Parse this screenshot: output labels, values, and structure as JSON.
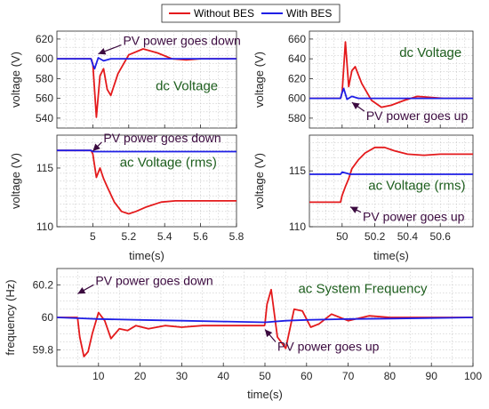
{
  "legend": {
    "location": "top-center",
    "entries": [
      {
        "name": "Without BES",
        "color": "#e41a1c"
      },
      {
        "name": "With BES",
        "color": "#1f1fe6"
      }
    ]
  },
  "colors": {
    "without": "#e41a1c",
    "with": "#1f1fe6",
    "annotation": "#3b0a3f",
    "panel_title": "#1d5e1d"
  },
  "chart_data": [
    {
      "id": "p1",
      "type": "line",
      "title": "",
      "xlabel": "",
      "ylabel": "voltage (V)",
      "xlim": [
        4.8,
        5.8
      ],
      "ylim": [
        530,
        628
      ],
      "xticks": [
        5,
        5.2,
        5.4,
        5.6,
        5.8
      ],
      "xticklabels": [],
      "yticks": [
        540,
        560,
        580,
        600,
        620
      ],
      "yticklabels": [
        "540",
        "560",
        "580",
        "600",
        "620"
      ],
      "grid": true,
      "series": [
        {
          "name": "Without BES",
          "x": [
            4.8,
            4.99,
            5.0,
            5.02,
            5.04,
            5.06,
            5.08,
            5.1,
            5.14,
            5.2,
            5.28,
            5.36,
            5.44,
            5.52,
            5.6,
            5.7,
            5.8
          ],
          "y": [
            600,
            600,
            595,
            541,
            583,
            590,
            569,
            563,
            585,
            604,
            610,
            606,
            600,
            599,
            600,
            600,
            600
          ]
        },
        {
          "name": "With BES",
          "x": [
            4.8,
            4.99,
            5.0,
            5.01,
            5.03,
            5.06,
            5.1,
            5.2,
            5.8
          ],
          "y": [
            600,
            600,
            594,
            590,
            601,
            598,
            600,
            600,
            600
          ]
        }
      ],
      "annotations": [
        {
          "text": "PV power goes down",
          "x": 5.03,
          "y": 614
        },
        {
          "text": "dc Voltage",
          "x": 5.35,
          "y": 568
        }
      ]
    },
    {
      "id": "p2",
      "type": "line",
      "title": "",
      "xlabel": "",
      "ylabel": "voltage (V)",
      "xlim": [
        49.8,
        50.8
      ],
      "ylim": [
        570,
        668
      ],
      "xticks": [
        50,
        50.2,
        50.4,
        50.6
      ],
      "xticklabels": [],
      "yticks": [
        580,
        600,
        620,
        640,
        660
      ],
      "yticklabels": [
        "580",
        "600",
        "620",
        "640",
        "660"
      ],
      "grid": true,
      "series": [
        {
          "name": "Without BES",
          "x": [
            49.8,
            49.99,
            50.0,
            50.02,
            50.04,
            50.06,
            50.08,
            50.12,
            50.18,
            50.24,
            50.3,
            50.38,
            50.46,
            50.54,
            50.62,
            50.7,
            50.8
          ],
          "y": [
            600,
            600,
            606,
            657,
            612,
            628,
            632,
            615,
            598,
            591,
            593,
            598,
            602,
            601,
            600,
            600,
            600
          ]
        },
        {
          "name": "With BES",
          "x": [
            49.8,
            49.99,
            50.0,
            50.01,
            50.03,
            50.06,
            50.1,
            50.2,
            50.8
          ],
          "y": [
            600,
            600,
            606,
            610,
            599,
            602,
            600,
            600,
            600
          ]
        }
      ],
      "annotations": [
        {
          "text": "dc Voltage",
          "x": 50.35,
          "y": 642
        },
        {
          "text": "PV power goes up",
          "x": 50.06,
          "y": 587
        }
      ]
    },
    {
      "id": "p3",
      "type": "line",
      "title": "",
      "xlabel": "time(s)",
      "ylabel": "voltage (V)",
      "xlim": [
        4.8,
        5.8
      ],
      "ylim": [
        110,
        117.8
      ],
      "xticks": [
        5,
        5.2,
        5.4,
        5.6,
        5.8
      ],
      "xticklabels": [
        "5",
        "5.2",
        "5.4",
        "5.6",
        "5.8"
      ],
      "yticks": [
        110,
        115
      ],
      "yticklabels": [
        "110",
        "115"
      ],
      "grid": true,
      "series": [
        {
          "name": "Without BES",
          "x": [
            4.8,
            4.99,
            5.0,
            5.02,
            5.04,
            5.06,
            5.08,
            5.12,
            5.16,
            5.2,
            5.24,
            5.3,
            5.38,
            5.46,
            5.56,
            5.7,
            5.8
          ],
          "y": [
            116.5,
            116.5,
            116.2,
            114.2,
            115.0,
            114.1,
            113.4,
            112.1,
            111.3,
            111.1,
            111.3,
            111.7,
            112.1,
            112.2,
            112.2,
            112.2,
            112.2
          ]
        },
        {
          "name": "With BES",
          "x": [
            4.8,
            4.99,
            5.0,
            5.05,
            5.3,
            5.8
          ],
          "y": [
            116.5,
            116.5,
            116.4,
            116.4,
            116.4,
            116.4
          ]
        }
      ],
      "annotations": [
        {
          "text": "PV power goes down",
          "x": 5.0,
          "y": 117.2
        },
        {
          "text": "ac Voltage (rms)",
          "x": 5.15,
          "y": 115.1
        }
      ]
    },
    {
      "id": "p4",
      "type": "line",
      "title": "",
      "xlabel": "time(s)",
      "ylabel": "voltage (V)",
      "xlim": [
        49.8,
        50.8
      ],
      "ylim": [
        110,
        118.2
      ],
      "xticks": [
        50,
        50.2,
        50.4,
        50.6
      ],
      "xticklabels": [
        "50",
        "50.2",
        "50.4",
        "50.6"
      ],
      "yticks": [
        110,
        115
      ],
      "yticklabels": [
        "110",
        "115"
      ],
      "grid": true,
      "series": [
        {
          "name": "Without BES",
          "x": [
            49.8,
            49.99,
            50.0,
            50.02,
            50.04,
            50.06,
            50.1,
            50.14,
            50.2,
            50.26,
            50.32,
            50.4,
            50.5,
            50.6,
            50.7,
            50.8
          ],
          "y": [
            112.2,
            112.2,
            112.8,
            113.6,
            114.3,
            115.2,
            116.0,
            116.6,
            117.1,
            117.1,
            116.8,
            116.5,
            116.4,
            116.5,
            116.5,
            116.5
          ]
        },
        {
          "name": "With BES",
          "x": [
            49.8,
            49.99,
            50.0,
            50.05,
            50.2,
            50.8
          ],
          "y": [
            114.7,
            114.7,
            114.9,
            114.7,
            114.7,
            114.7
          ]
        }
      ],
      "annotations": [
        {
          "text": "ac Voltage (rms)",
          "x": 50.16,
          "y": 113.3
        },
        {
          "text": "PV power goes up",
          "x": 50.05,
          "y": 111.3
        }
      ]
    },
    {
      "id": "p5",
      "type": "line",
      "title": "",
      "xlabel": "time(s)",
      "ylabel": "frequency (Hz)",
      "xlim": [
        0,
        100
      ],
      "ylim": [
        59.7,
        60.3
      ],
      "xticks": [
        10,
        20,
        30,
        40,
        50,
        60,
        70,
        80,
        90,
        100
      ],
      "xticklabels": [
        "10",
        "20",
        "30",
        "40",
        "50",
        "60",
        "70",
        "80",
        "90",
        "100"
      ],
      "yticks": [
        59.8,
        60,
        60.2
      ],
      "yticklabels": [
        "59.8",
        "60",
        "60.2"
      ],
      "grid": true,
      "series": [
        {
          "name": "Without BES",
          "x": [
            0,
            4.9,
            5,
            5.5,
            6.5,
            7.5,
            8.5,
            10,
            11.5,
            13,
            15,
            17,
            19,
            22,
            26,
            30,
            35,
            40,
            45,
            49.9,
            50,
            50.5,
            51.5,
            53,
            55,
            57,
            59,
            61,
            63,
            66,
            70,
            75,
            80,
            85,
            90,
            95,
            100
          ],
          "y": [
            60,
            60,
            59.99,
            59.88,
            59.76,
            59.79,
            59.9,
            60.03,
            59.98,
            59.87,
            59.93,
            59.92,
            59.95,
            59.93,
            59.95,
            59.94,
            59.95,
            59.95,
            59.95,
            59.95,
            59.96,
            60.08,
            60.17,
            59.88,
            59.81,
            60.05,
            60.04,
            59.94,
            59.96,
            60.02,
            59.98,
            60.01,
            60.0,
            60.0,
            60.0,
            60.0,
            60.0
          ]
        },
        {
          "name": "With BES",
          "x": [
            0,
            5,
            10,
            20,
            30,
            40,
            50,
            55,
            60,
            70,
            80,
            90,
            100
          ],
          "y": [
            60,
            59.995,
            59.99,
            59.985,
            59.98,
            59.975,
            59.97,
            59.98,
            59.985,
            59.99,
            59.993,
            59.996,
            60.0
          ]
        }
      ],
      "annotations": [
        {
          "text": "PV power goes down",
          "x": 5,
          "y": 60.2
        },
        {
          "text": "ac System Frequency",
          "x": 58,
          "y": 60.15
        },
        {
          "text": "PV power goes up",
          "x": 50,
          "y": 59.85
        }
      ]
    }
  ]
}
